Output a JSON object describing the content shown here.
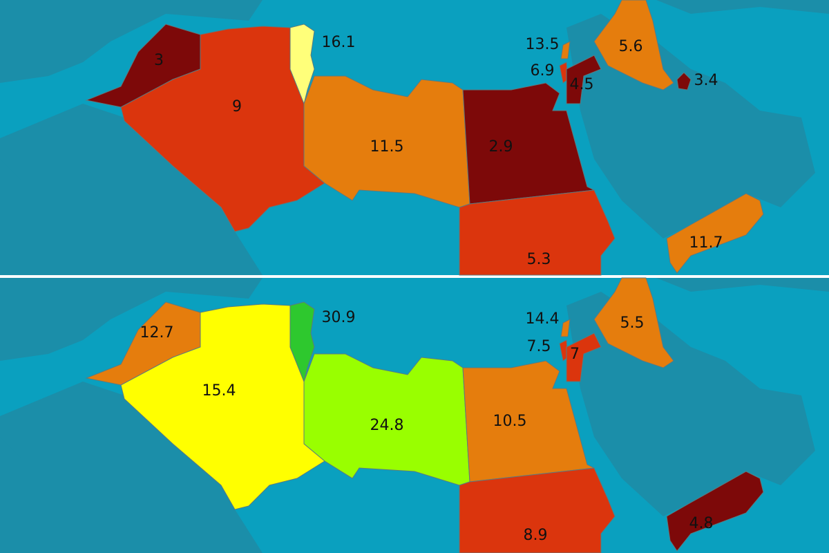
{
  "panels": [
    {
      "regions": [
        {
          "value": 3,
          "color": "#7d0909"
        },
        {
          "value": 9,
          "color": "#db350d"
        },
        {
          "value": 16.1,
          "color": "#ffff7a"
        },
        {
          "value": 11.5,
          "color": "#e57d0d"
        },
        {
          "value": 2.9,
          "color": "#7d0909"
        },
        {
          "value": 5.3,
          "color": "#db350d"
        },
        {
          "value": 13.5,
          "color": "#e57d0d"
        },
        {
          "value": 6.9,
          "color": "#db350d"
        },
        {
          "value": 4.5,
          "color": "#7d0909"
        },
        {
          "value": 5.6,
          "color": "#e57d0d"
        },
        {
          "value": 11.7,
          "color": "#e57d0d"
        },
        {
          "value": 3.4,
          "color": "#7d0909"
        }
      ]
    },
    {
      "regions": [
        {
          "value": 12.7,
          "color": "#e57d0d"
        },
        {
          "value": 15.4,
          "color": "#ffff00"
        },
        {
          "value": 30.9,
          "color": "#2ec82e"
        },
        {
          "value": 24.8,
          "color": "#99ff00"
        },
        {
          "value": 10.5,
          "color": "#e57d0d"
        },
        {
          "value": 8.9,
          "color": "#db350d"
        },
        {
          "value": 14.4,
          "color": "#e57d0d"
        },
        {
          "value": 7.5,
          "color": "#db350d"
        },
        {
          "value": 7,
          "color": "#db350d"
        },
        {
          "value": 5.5,
          "color": "#e57d0d"
        },
        {
          "value": 4.8,
          "color": "#7d0909"
        }
      ]
    }
  ]
}
